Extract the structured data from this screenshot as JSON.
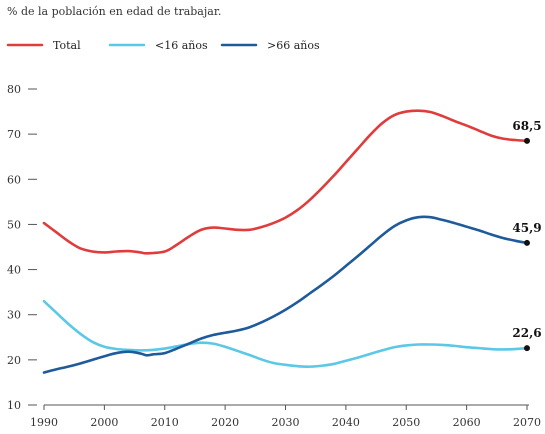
{
  "chart_data": {
    "type": "line",
    "subtitle": "% de la población en edad de trabajar.",
    "xlim": [
      1990,
      2070
    ],
    "ylim": [
      10,
      80
    ],
    "x_ticks": [
      1990,
      2000,
      2010,
      2020,
      2030,
      2040,
      2050,
      2060,
      2070
    ],
    "y_ticks": [
      10,
      20,
      30,
      40,
      50,
      60,
      70,
      80
    ],
    "grid": false,
    "legend_position": "top-left",
    "series": [
      {
        "name": "Total",
        "color": "#e03c3c",
        "end_label": "68,5",
        "points": [
          [
            1990,
            50.3
          ],
          [
            1992,
            48.3
          ],
          [
            1994,
            46.3
          ],
          [
            1996,
            44.7
          ],
          [
            1998,
            44.0
          ],
          [
            2000,
            43.8
          ],
          [
            2002,
            44.0
          ],
          [
            2004,
            44.1
          ],
          [
            2006,
            43.8
          ],
          [
            2007,
            43.6
          ],
          [
            2010,
            44.0
          ],
          [
            2012,
            45.5
          ],
          [
            2014,
            47.3
          ],
          [
            2016,
            48.8
          ],
          [
            2018,
            49.3
          ],
          [
            2020,
            49.1
          ],
          [
            2022,
            48.8
          ],
          [
            2024,
            48.8
          ],
          [
            2026,
            49.4
          ],
          [
            2028,
            50.3
          ],
          [
            2030,
            51.5
          ],
          [
            2032,
            53.2
          ],
          [
            2034,
            55.4
          ],
          [
            2036,
            58.0
          ],
          [
            2038,
            60.8
          ],
          [
            2040,
            63.8
          ],
          [
            2042,
            66.8
          ],
          [
            2044,
            69.8
          ],
          [
            2046,
            72.4
          ],
          [
            2048,
            74.2
          ],
          [
            2050,
            75.0
          ],
          [
            2052,
            75.2
          ],
          [
            2054,
            74.9
          ],
          [
            2056,
            74.0
          ],
          [
            2058,
            72.9
          ],
          [
            2060,
            71.9
          ],
          [
            2062,
            70.8
          ],
          [
            2064,
            69.7
          ],
          [
            2066,
            69.0
          ],
          [
            2068,
            68.7
          ],
          [
            2070,
            68.5
          ]
        ]
      },
      {
        "name": "<16 años",
        "color": "#5bc8e6",
        "end_label": "22,6",
        "points": [
          [
            1990,
            33.0
          ],
          [
            1992,
            30.5
          ],
          [
            1994,
            28.0
          ],
          [
            1996,
            25.8
          ],
          [
            1998,
            24.0
          ],
          [
            2000,
            22.9
          ],
          [
            2002,
            22.4
          ],
          [
            2004,
            22.2
          ],
          [
            2006,
            22.1
          ],
          [
            2008,
            22.2
          ],
          [
            2010,
            22.5
          ],
          [
            2012,
            23.0
          ],
          [
            2014,
            23.5
          ],
          [
            2016,
            23.8
          ],
          [
            2018,
            23.6
          ],
          [
            2020,
            22.9
          ],
          [
            2022,
            22.0
          ],
          [
            2024,
            21.1
          ],
          [
            2026,
            20.1
          ],
          [
            2028,
            19.3
          ],
          [
            2030,
            18.9
          ],
          [
            2032,
            18.6
          ],
          [
            2034,
            18.5
          ],
          [
            2036,
            18.7
          ],
          [
            2038,
            19.1
          ],
          [
            2040,
            19.8
          ],
          [
            2042,
            20.5
          ],
          [
            2044,
            21.3
          ],
          [
            2046,
            22.1
          ],
          [
            2048,
            22.8
          ],
          [
            2050,
            23.2
          ],
          [
            2052,
            23.4
          ],
          [
            2054,
            23.4
          ],
          [
            2056,
            23.3
          ],
          [
            2058,
            23.1
          ],
          [
            2060,
            22.8
          ],
          [
            2062,
            22.6
          ],
          [
            2064,
            22.4
          ],
          [
            2066,
            22.3
          ],
          [
            2068,
            22.4
          ],
          [
            2070,
            22.6
          ]
        ]
      },
      {
        "name": ">66 años",
        "color": "#1f5a9a",
        "end_label": "45,9",
        "points": [
          [
            1990,
            17.2
          ],
          [
            1992,
            17.9
          ],
          [
            1994,
            18.5
          ],
          [
            1996,
            19.2
          ],
          [
            1998,
            20.0
          ],
          [
            2000,
            20.8
          ],
          [
            2002,
            21.5
          ],
          [
            2004,
            21.8
          ],
          [
            2006,
            21.4
          ],
          [
            2007,
            21.0
          ],
          [
            2008,
            21.2
          ],
          [
            2010,
            21.5
          ],
          [
            2012,
            22.5
          ],
          [
            2014,
            23.6
          ],
          [
            2016,
            24.7
          ],
          [
            2018,
            25.5
          ],
          [
            2020,
            26.0
          ],
          [
            2022,
            26.5
          ],
          [
            2024,
            27.2
          ],
          [
            2026,
            28.3
          ],
          [
            2028,
            29.6
          ],
          [
            2030,
            31.1
          ],
          [
            2032,
            32.8
          ],
          [
            2034,
            34.7
          ],
          [
            2036,
            36.6
          ],
          [
            2038,
            38.6
          ],
          [
            2040,
            40.8
          ],
          [
            2042,
            43.0
          ],
          [
            2044,
            45.3
          ],
          [
            2046,
            47.6
          ],
          [
            2048,
            49.6
          ],
          [
            2050,
            50.9
          ],
          [
            2052,
            51.6
          ],
          [
            2054,
            51.6
          ],
          [
            2056,
            51.0
          ],
          [
            2058,
            50.3
          ],
          [
            2060,
            49.5
          ],
          [
            2062,
            48.7
          ],
          [
            2064,
            47.8
          ],
          [
            2066,
            47.0
          ],
          [
            2068,
            46.4
          ],
          [
            2070,
            45.9
          ]
        ]
      }
    ]
  }
}
